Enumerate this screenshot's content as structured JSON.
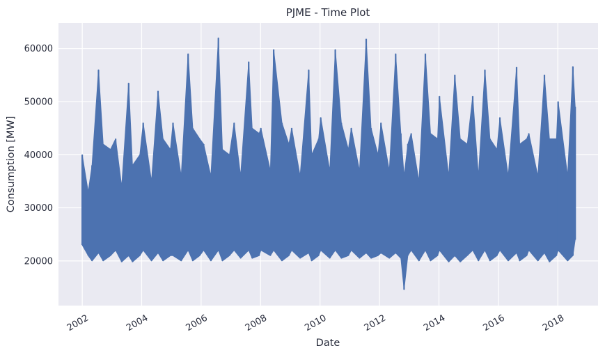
{
  "chart_data": {
    "type": "line",
    "title": "PJME - Time Plot",
    "xlabel": "Date",
    "ylabel": "Consumption [MW]",
    "x_type": "date",
    "x_ticks": [
      "2002",
      "2004",
      "2006",
      "2008",
      "2010",
      "2012",
      "2014",
      "2016",
      "2018"
    ],
    "y_ticks": [
      20000,
      30000,
      40000,
      50000,
      60000
    ],
    "xlim": [
      "2001-03-15",
      "2019-05-10"
    ],
    "ylim": [
      11600,
      64800
    ],
    "grid": true,
    "series": [
      {
        "color": "#4c72b0",
        "x": [
          "2002-01-01",
          "2002-03-15",
          "2002-05-01",
          "2002-07-20",
          "2002-09-15",
          "2002-12-15",
          "2003-02-15",
          "2003-05-01",
          "2003-07-25",
          "2003-09-10",
          "2003-12-10",
          "2004-01-20",
          "2004-05-01",
          "2004-07-20",
          "2004-09-20",
          "2004-12-20",
          "2005-01-20",
          "2005-05-01",
          "2005-07-25",
          "2005-09-20",
          "2005-12-15",
          "2006-02-01",
          "2006-05-01",
          "2006-08-01",
          "2006-09-20",
          "2006-12-15",
          "2007-02-10",
          "2007-05-01",
          "2007-08-08",
          "2007-09-20",
          "2007-12-15",
          "2008-01-05",
          "2008-05-01",
          "2008-06-10",
          "2008-09-20",
          "2008-12-15",
          "2009-01-18",
          "2009-05-01",
          "2009-08-15",
          "2009-09-20",
          "2009-12-15",
          "2010-01-10",
          "2010-05-01",
          "2010-07-07",
          "2010-09-20",
          "2010-12-15",
          "2011-01-20",
          "2011-05-01",
          "2011-07-22",
          "2011-09-20",
          "2011-12-15",
          "2012-01-20",
          "2012-05-01",
          "2012-07-18",
          "2012-09-20",
          "2012-10-30",
          "2012-12-15",
          "2013-01-25",
          "2013-05-01",
          "2013-07-18",
          "2013-09-20",
          "2013-12-15",
          "2014-01-07",
          "2014-05-01",
          "2014-07-15",
          "2014-09-20",
          "2014-12-15",
          "2015-02-20",
          "2015-05-01",
          "2015-07-20",
          "2015-09-20",
          "2015-12-15",
          "2016-01-20",
          "2016-05-01",
          "2016-08-12",
          "2016-09-20",
          "2016-12-15",
          "2017-01-10",
          "2017-05-01",
          "2017-07-20",
          "2017-09-20",
          "2017-12-15",
          "2018-01-05",
          "2018-05-01",
          "2018-07-05",
          "2018-08-02"
        ],
        "high": [
          40000,
          33000,
          38000,
          56000,
          42000,
          41000,
          43000,
          34000,
          53500,
          38000,
          40000,
          46000,
          35000,
          52000,
          43000,
          41000,
          46000,
          36000,
          59000,
          45000,
          43000,
          42000,
          36000,
          62000,
          41000,
          40000,
          46000,
          36000,
          57500,
          45000,
          44000,
          45000,
          37000,
          59800,
          46000,
          42000,
          45000,
          36000,
          56000,
          40000,
          43000,
          47000,
          37000,
          59800,
          46000,
          41000,
          45000,
          37000,
          61800,
          45000,
          40000,
          46000,
          37000,
          59000,
          44000,
          36000,
          42000,
          44000,
          35000,
          59000,
          44000,
          43000,
          51000,
          36000,
          55000,
          43000,
          42000,
          51000,
          36000,
          56000,
          43000,
          41000,
          47000,
          36000,
          56500,
          42000,
          43000,
          44000,
          36000,
          55000,
          43000,
          43000,
          50000,
          36000,
          56600,
          49000
        ],
        "low": [
          23000,
          21000,
          20000,
          21500,
          20000,
          21000,
          22000,
          19800,
          21000,
          19800,
          21000,
          22000,
          20000,
          21500,
          20000,
          21000,
          21000,
          20000,
          22000,
          20000,
          21000,
          22000,
          20000,
          22000,
          20000,
          21000,
          22000,
          20500,
          22000,
          20500,
          21000,
          22000,
          21000,
          22000,
          20000,
          21000,
          22000,
          20500,
          21500,
          20000,
          21000,
          22000,
          20500,
          22000,
          20500,
          21000,
          22000,
          20500,
          21500,
          20500,
          21000,
          21500,
          20500,
          21500,
          20500,
          14600,
          21000,
          22000,
          20000,
          22000,
          20000,
          21000,
          22000,
          19800,
          21000,
          19800,
          21000,
          22000,
          20000,
          22000,
          20000,
          21000,
          22000,
          20000,
          21500,
          20000,
          21000,
          22000,
          20000,
          21500,
          19800,
          21000,
          22000,
          20000,
          21000,
          24000
        ]
      }
    ]
  }
}
